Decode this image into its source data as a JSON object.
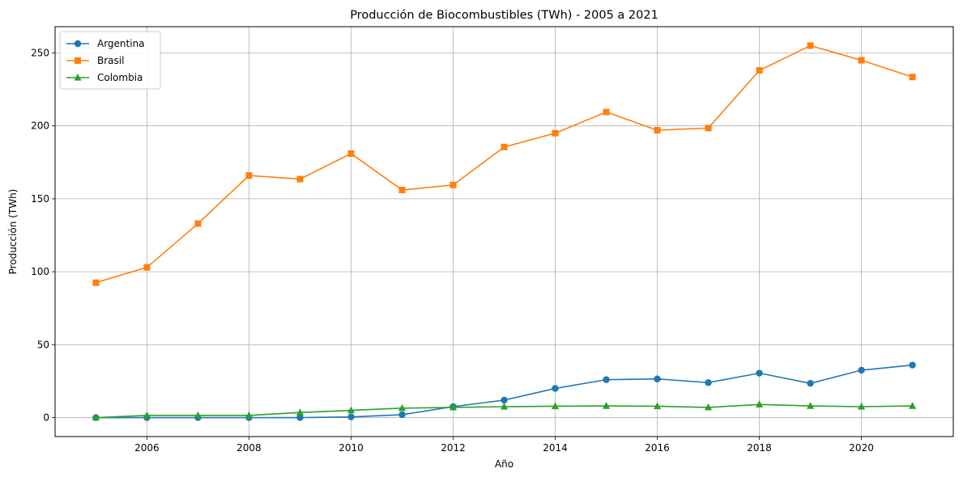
{
  "chart_data": {
    "type": "line",
    "title": "Producción de Biocombustibles (TWh) - 2005 a 2021",
    "xlabel": "Año",
    "ylabel": "Producción (TWh)",
    "x": [
      2005,
      2006,
      2007,
      2008,
      2009,
      2010,
      2011,
      2012,
      2013,
      2014,
      2015,
      2016,
      2017,
      2018,
      2019,
      2020,
      2021
    ],
    "xticks": [
      "2006",
      "2008",
      "2010",
      "2012",
      "2014",
      "2016",
      "2018",
      "2020"
    ],
    "yticks": [
      "0",
      "50",
      "100",
      "150",
      "200",
      "250"
    ],
    "xlim": [
      2004.2,
      2021.8
    ],
    "ylim": [
      -13,
      268
    ],
    "grid": true,
    "legend_position": "top-left",
    "series": [
      {
        "name": "Argentina",
        "color": "#1f77b4",
        "marker": "circle",
        "values": [
          0,
          0,
          0,
          0,
          0,
          0.5,
          2,
          7.5,
          12,
          20,
          26,
          26.5,
          24,
          30.5,
          23.5,
          32.5,
          36
        ]
      },
      {
        "name": "Brasil",
        "color": "#ff7f0e",
        "marker": "square",
        "values": [
          92.5,
          103,
          133,
          166,
          163.5,
          181,
          156,
          159.5,
          185.5,
          195,
          209.5,
          197,
          198.5,
          238,
          255,
          245,
          233.5
        ]
      },
      {
        "name": "Colombia",
        "color": "#2ca02c",
        "marker": "triangle",
        "values": [
          0,
          1.5,
          1.5,
          1.5,
          3.5,
          5,
          6.5,
          7,
          7.5,
          7.8,
          8,
          7.8,
          7,
          9,
          8,
          7.5,
          8
        ]
      }
    ]
  }
}
